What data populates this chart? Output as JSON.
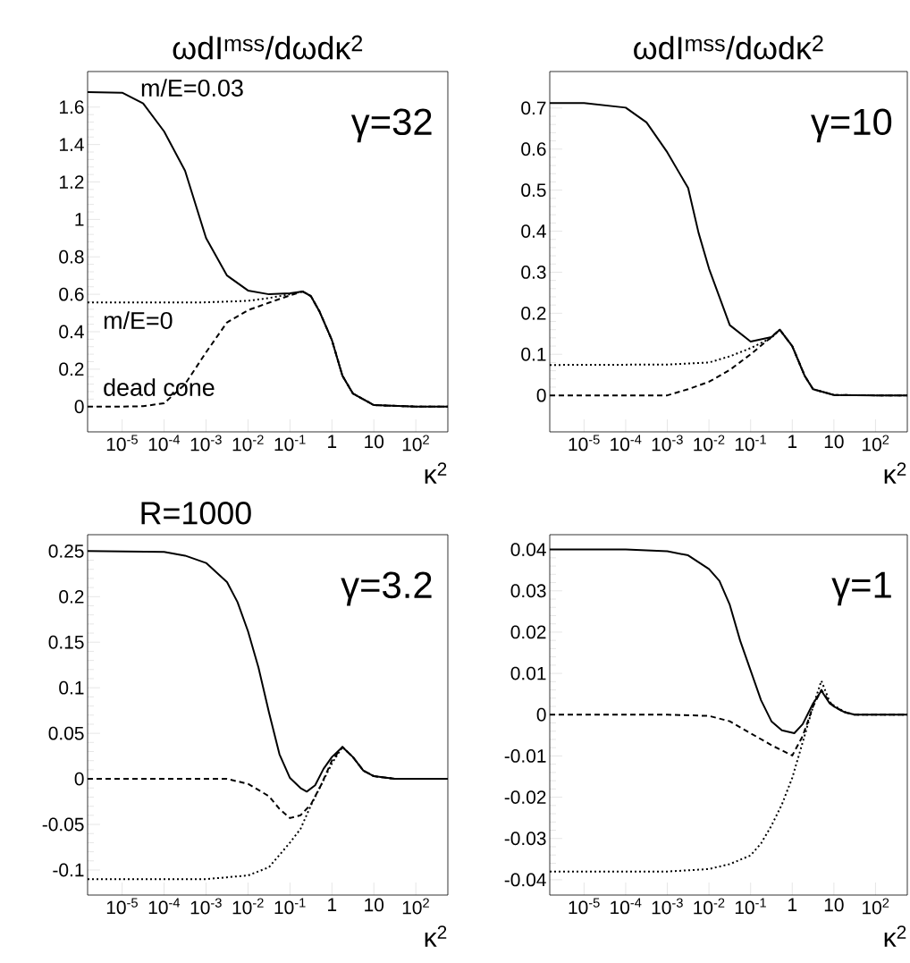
{
  "chart_data": [
    {
      "type": "line",
      "title": "ωdI$^{mss}$/dωdκ$^{2}$",
      "xlabel": "κ$^{2}$",
      "log": "x",
      "xlim": [
        1.5e-06,
        580
      ],
      "ylim": [
        -0.135,
        1.79
      ],
      "xticks": [
        {
          "value": 1e-05,
          "label": "10$^{-5}$"
        },
        {
          "value": 0.0001,
          "label": "10$^{-4}$"
        },
        {
          "value": 0.001,
          "label": "10$^{-3}$"
        },
        {
          "value": 0.01,
          "label": "10$^{-2}$"
        },
        {
          "value": 0.1,
          "label": "10$^{-1}$"
        },
        1,
        10,
        {
          "value": 100,
          "label": "10$^{2}$"
        }
      ],
      "yticks": [
        0,
        0.2,
        0.4,
        0.6,
        0.8,
        1,
        1.2,
        1.4,
        1.6
      ],
      "annotations": [
        "γ=32",
        "m/E=0.03",
        "m/E=0",
        "dead cone"
      ],
      "series": [
        {
          "color": "#000000",
          "line_style": "solid",
          "x": [
            1.5e-06,
            1e-05,
            3.16e-05,
            0.0001,
            0.000316,
            0.001,
            0.00316,
            0.01,
            0.0316,
            0.1,
            0.2,
            0.316,
            0.501,
            1,
            1.78,
            3.16,
            10,
            100,
            580
          ],
          "values": [
            1.68,
            1.677,
            1.62,
            1.47,
            1.26,
            0.9,
            0.7,
            0.62,
            0.6,
            0.605,
            0.615,
            0.59,
            0.51,
            0.355,
            0.165,
            0.07,
            0.008,
            0,
            0
          ]
        },
        {
          "color": "#000000",
          "line_style": "dotted",
          "x": [
            1.5e-06,
            0.001,
            0.01,
            0.0316,
            0.1,
            0.2,
            0.316,
            0.501,
            1,
            1.78,
            3.16,
            10,
            100,
            580
          ],
          "values": [
            0.556,
            0.557,
            0.565,
            0.58,
            0.6,
            0.615,
            0.59,
            0.51,
            0.355,
            0.165,
            0.07,
            0.008,
            0,
            0
          ]
        },
        {
          "color": "#000000",
          "line_style": "dashed",
          "x": [
            1.5e-06,
            1e-05,
            3.16e-05,
            0.0001,
            0.000316,
            0.001,
            0.00316,
            0.01,
            0.0316,
            0.1,
            0.2,
            0.316,
            0.501,
            1,
            1.78,
            3.16,
            10,
            100,
            580
          ],
          "values": [
            0,
            0,
            0.002,
            0.018,
            0.12,
            0.29,
            0.45,
            0.515,
            0.555,
            0.594,
            0.615,
            0.59,
            0.51,
            0.355,
            0.165,
            0.07,
            0.008,
            0,
            0
          ]
        }
      ]
    },
    {
      "type": "line",
      "title": "ωdI$^{mss}$/dωdκ$^{2}$",
      "xlabel": "κ$^{2}$",
      "log": "x",
      "xlim": [
        1.5e-06,
        580
      ],
      "ylim": [
        -0.089,
        0.789
      ],
      "xticks": [
        {
          "value": 1e-05,
          "label": "10$^{-5}$"
        },
        {
          "value": 0.0001,
          "label": "10$^{-4}$"
        },
        {
          "value": 0.001,
          "label": "10$^{-3}$"
        },
        {
          "value": 0.01,
          "label": "10$^{-2}$"
        },
        {
          "value": 0.1,
          "label": "10$^{-1}$"
        },
        1,
        10,
        {
          "value": 100,
          "label": "10$^{2}$"
        }
      ],
      "yticks": [
        0,
        0.1,
        0.2,
        0.3,
        0.4,
        0.5,
        0.6,
        0.7
      ],
      "annotations": [
        "γ=10"
      ],
      "series": [
        {
          "color": "#000000",
          "line_style": "solid",
          "x": [
            1.5e-06,
            1e-05,
            0.0001,
            0.000316,
            0.001,
            0.00316,
            0.00562,
            0.01,
            0.0316,
            0.1,
            0.316,
            0.501,
            1,
            2,
            3.16,
            10,
            100,
            580
          ],
          "values": [
            0.712,
            0.712,
            0.701,
            0.665,
            0.592,
            0.505,
            0.396,
            0.309,
            0.171,
            0.131,
            0.142,
            0.16,
            0.12,
            0.047,
            0.015,
            0.001,
            0,
            0
          ]
        },
        {
          "color": "#000000",
          "line_style": "dotted",
          "x": [
            1.5e-06,
            0.001,
            0.01,
            0.0316,
            0.1,
            0.316,
            0.501,
            1,
            2,
            3.16,
            10,
            100,
            580
          ],
          "values": [
            0.074,
            0.075,
            0.08,
            0.095,
            0.115,
            0.14,
            0.16,
            0.12,
            0.047,
            0.015,
            0.001,
            0,
            0
          ]
        },
        {
          "color": "#000000",
          "line_style": "dashed",
          "x": [
            1.5e-06,
            0.001,
            0.00316,
            0.01,
            0.0316,
            0.1,
            0.316,
            0.501,
            1,
            2,
            3.16,
            10,
            100,
            580
          ],
          "values": [
            0,
            0,
            0.015,
            0.033,
            0.062,
            0.1,
            0.142,
            0.16,
            0.12,
            0.047,
            0.015,
            0.001,
            0,
            0
          ]
        }
      ]
    },
    {
      "type": "line",
      "title": "R=1000",
      "xlabel": "κ$^{2}$",
      "log": "x",
      "xlim": [
        1.5e-06,
        580
      ],
      "ylim": [
        -0.1275,
        0.268
      ],
      "xticks": [
        {
          "value": 1e-05,
          "label": "10$^{-5}$"
        },
        {
          "value": 0.0001,
          "label": "10$^{-4}$"
        },
        {
          "value": 0.001,
          "label": "10$^{-3}$"
        },
        {
          "value": 0.01,
          "label": "10$^{-2}$"
        },
        {
          "value": 0.1,
          "label": "10$^{-1}$"
        },
        1,
        10,
        {
          "value": 100,
          "label": "10$^{2}$"
        }
      ],
      "yticks": [
        -0.1,
        -0.05,
        0,
        0.05,
        0.1,
        0.15,
        0.2,
        0.25
      ],
      "annotations": [
        "γ=3.2"
      ],
      "series": [
        {
          "color": "#000000",
          "line_style": "solid",
          "x": [
            1.5e-06,
            0.0001,
            0.000316,
            0.001,
            0.00316,
            0.00562,
            0.01,
            0.0178,
            0.0316,
            0.0562,
            0.1,
            0.178,
            0.251,
            0.398,
            0.631,
            1,
            1.78,
            3.16,
            5.62,
            10,
            31.6,
            580
          ],
          "values": [
            0.25,
            0.249,
            0.245,
            0.237,
            0.216,
            0.194,
            0.162,
            0.122,
            0.073,
            0.027,
            0.001,
            -0.01,
            -0.014,
            -0.007,
            0.011,
            0.024,
            0.035,
            0.024,
            0.009,
            0.003,
            0,
            0
          ]
        },
        {
          "color": "#000000",
          "line_style": "dotted",
          "x": [
            1.5e-06,
            0.001,
            0.00316,
            0.01,
            0.0316,
            0.1,
            0.178,
            0.316,
            0.562,
            1,
            1.78,
            3.16,
            5.62,
            10,
            31.6,
            580
          ],
          "values": [
            -0.11,
            -0.11,
            -0.108,
            -0.106,
            -0.097,
            -0.07,
            -0.055,
            -0.029,
            -0.006,
            0.017,
            0.035,
            0.024,
            0.009,
            0.003,
            0,
            0
          ]
        },
        {
          "color": "#000000",
          "line_style": "dashed",
          "x": [
            1.5e-06,
            0.001,
            0.00316,
            0.01,
            0.0316,
            0.0562,
            0.1,
            0.178,
            0.316,
            0.562,
            1,
            1.78,
            3.16,
            5.62,
            10,
            31.6,
            580
          ],
          "values": [
            0,
            0,
            0,
            -0.0055,
            -0.019,
            -0.033,
            -0.043,
            -0.04,
            -0.028,
            -0.006,
            0.02,
            0.035,
            0.024,
            0.009,
            0.003,
            0,
            0
          ]
        }
      ]
    },
    {
      "type": "line",
      "xlabel": "κ$^{2}$",
      "log": "x",
      "xlim": [
        1.5e-06,
        580
      ],
      "ylim": [
        -0.0437,
        0.0436
      ],
      "xticks": [
        {
          "value": 1e-05,
          "label": "10$^{-5}$"
        },
        {
          "value": 0.0001,
          "label": "10$^{-4}$"
        },
        {
          "value": 0.001,
          "label": "10$^{-3}$"
        },
        {
          "value": 0.01,
          "label": "10$^{-2}$"
        },
        {
          "value": 0.1,
          "label": "10$^{-1}$"
        },
        1,
        10,
        {
          "value": 100,
          "label": "10$^{2}$"
        }
      ],
      "yticks": [
        -0.04,
        -0.03,
        -0.02,
        -0.01,
        0,
        0.01,
        0.02,
        0.03,
        0.04
      ],
      "annotations": [
        "γ=1"
      ],
      "series": [
        {
          "color": "#000000",
          "line_style": "solid",
          "x": [
            1.5e-06,
            0.0001,
            0.001,
            0.00316,
            0.01,
            0.0178,
            0.0316,
            0.0562,
            0.1,
            0.178,
            0.316,
            0.562,
            1.12,
            1.78,
            3.16,
            5.01,
            7.94,
            10,
            17.8,
            31.6,
            100,
            580
          ],
          "values": [
            0.04,
            0.04,
            0.0396,
            0.0386,
            0.0353,
            0.0324,
            0.0266,
            0.0179,
            0.0107,
            0.0035,
            -0.0016,
            -0.0038,
            -0.0045,
            -0.0023,
            0.0027,
            0.0058,
            0.0027,
            0.002,
            0.0006,
            0,
            0,
            0
          ]
        },
        {
          "color": "#000000",
          "line_style": "dotted",
          "x": [
            1.5e-06,
            0.001,
            0.01,
            0.0316,
            0.1,
            0.178,
            0.316,
            0.562,
            1,
            1.78,
            3.16,
            5.01,
            7.94,
            10,
            17.8,
            31.6,
            580
          ],
          "values": [
            -0.038,
            -0.038,
            -0.0374,
            -0.0362,
            -0.0341,
            -0.0312,
            -0.0269,
            -0.0218,
            -0.0153,
            -0.0067,
            0.002,
            0.0082,
            0.0031,
            0.0022,
            0.0007,
            0,
            0
          ]
        },
        {
          "color": "#000000",
          "line_style": "dashed",
          "x": [
            1.5e-06,
            0.001,
            0.01,
            0.0316,
            0.1,
            0.316,
            1,
            1.78,
            3.16,
            5.01,
            7.94,
            10,
            17.8,
            31.6,
            580
          ],
          "values": [
            0,
            0,
            -0.0003,
            -0.0016,
            -0.0045,
            -0.0074,
            -0.0099,
            -0.0052,
            0.002,
            0.006,
            0.003,
            0.002,
            0.0006,
            0,
            0
          ]
        }
      ]
    }
  ]
}
